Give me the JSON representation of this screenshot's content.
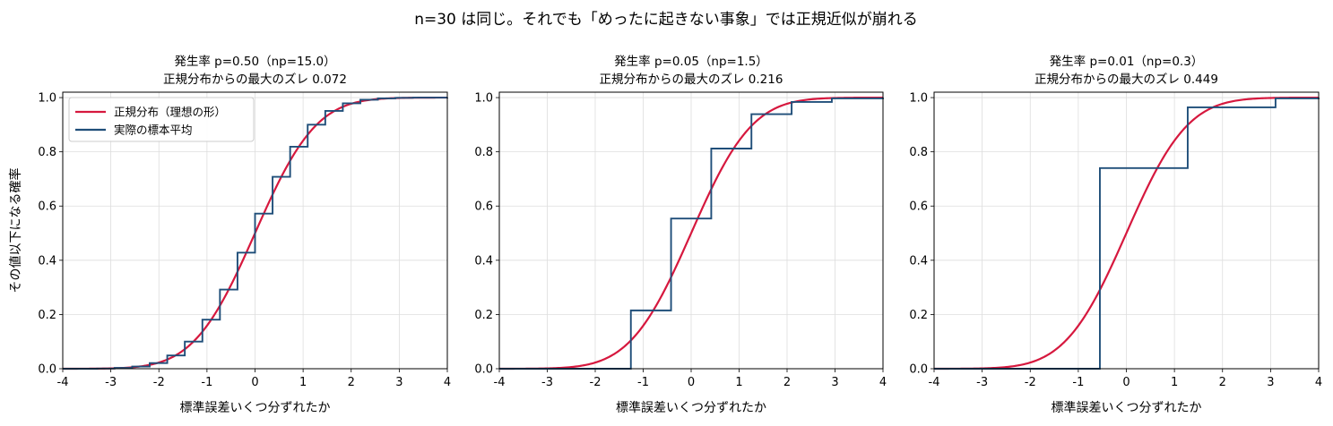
{
  "suptitle": "n=30 は同じ。それでも「めったに起きない事象」では正規近似が崩れる",
  "colors": {
    "normal": "#d6183e",
    "empirical": "#1f4e79",
    "grid": "#dddddd"
  },
  "chart_data": [
    {
      "type": "line",
      "title": "発生率 p=0.50（np=15.0）",
      "subtitle": "正規分布からの最大のズレ 0.072",
      "xlabel": "標準誤差いくつ分ずれたか",
      "ylabel": "その値以下になる確率",
      "xlim": [
        -4,
        4
      ],
      "ylim": [
        0,
        1.02
      ],
      "xticks": [
        "-4",
        "-3",
        "-2",
        "-1",
        "0",
        "1",
        "2",
        "3",
        "4"
      ],
      "yticks": [
        "0.0",
        "0.2",
        "0.4",
        "0.6",
        "0.8",
        "1.0"
      ],
      "grid": true,
      "legend": {
        "position": "top-left",
        "entries": [
          "正規分布（理想の形）",
          "実際の標本平均"
        ]
      },
      "series": [
        {
          "name": "正規分布（理想の形）",
          "kind": "normal_cdf"
        },
        {
          "name": "実際の標本平均",
          "kind": "step",
          "x": [
            -4,
            -3.286,
            -2.921,
            -2.556,
            -2.191,
            -1.826,
            -1.461,
            -1.095,
            -0.73,
            -0.365,
            0.0,
            0.365,
            0.73,
            1.095,
            1.461,
            1.826,
            2.191,
            2.556,
            2.921,
            3.286,
            4
          ],
          "y": [
            0.0,
            0.0007,
            0.003,
            0.008,
            0.021,
            0.049,
            0.1,
            0.181,
            0.292,
            0.428,
            0.572,
            0.708,
            0.819,
            0.9,
            0.951,
            0.979,
            0.992,
            0.997,
            0.9993,
            0.9999,
            1.0
          ]
        }
      ]
    },
    {
      "type": "line",
      "title": "発生率 p=0.05（np=1.5）",
      "subtitle": "正規分布からの最大のズレ 0.216",
      "xlabel": "標準誤差いくつ分ずれたか",
      "xlim": [
        -4,
        4
      ],
      "ylim": [
        0,
        1.02
      ],
      "xticks": [
        "-4",
        "-3",
        "-2",
        "-1",
        "0",
        "1",
        "2",
        "3",
        "4"
      ],
      "yticks": [
        "0.0",
        "0.2",
        "0.4",
        "0.6",
        "0.8",
        "1.0"
      ],
      "grid": true,
      "series": [
        {
          "name": "正規分布（理想の形）",
          "kind": "normal_cdf"
        },
        {
          "name": "実際の標本平均",
          "kind": "step",
          "x": [
            -4,
            -1.257,
            -0.419,
            0.419,
            1.257,
            2.095,
            2.933,
            4
          ],
          "y": [
            0.0,
            0.215,
            0.554,
            0.812,
            0.939,
            0.984,
            0.997,
            1.0
          ]
        }
      ]
    },
    {
      "type": "line",
      "title": "発生率 p=0.01（np=0.3）",
      "subtitle": "正規分布からの最大のズレ 0.449",
      "xlabel": "標準誤差いくつ分ずれたか",
      "xlim": [
        -4,
        4
      ],
      "ylim": [
        0,
        1.02
      ],
      "xticks": [
        "-4",
        "-3",
        "-2",
        "-1",
        "0",
        "1",
        "2",
        "3",
        "4"
      ],
      "yticks": [
        "0.0",
        "0.2",
        "0.4",
        "0.6",
        "0.8",
        "1.0"
      ],
      "grid": true,
      "series": [
        {
          "name": "正規分布（理想の形）",
          "kind": "normal_cdf"
        },
        {
          "name": "実際の標本平均",
          "kind": "step",
          "x": [
            -4,
            -0.551,
            1.276,
            3.103,
            4
          ],
          "y": [
            0.0,
            0.74,
            0.964,
            0.997,
            1.0
          ]
        }
      ]
    }
  ]
}
